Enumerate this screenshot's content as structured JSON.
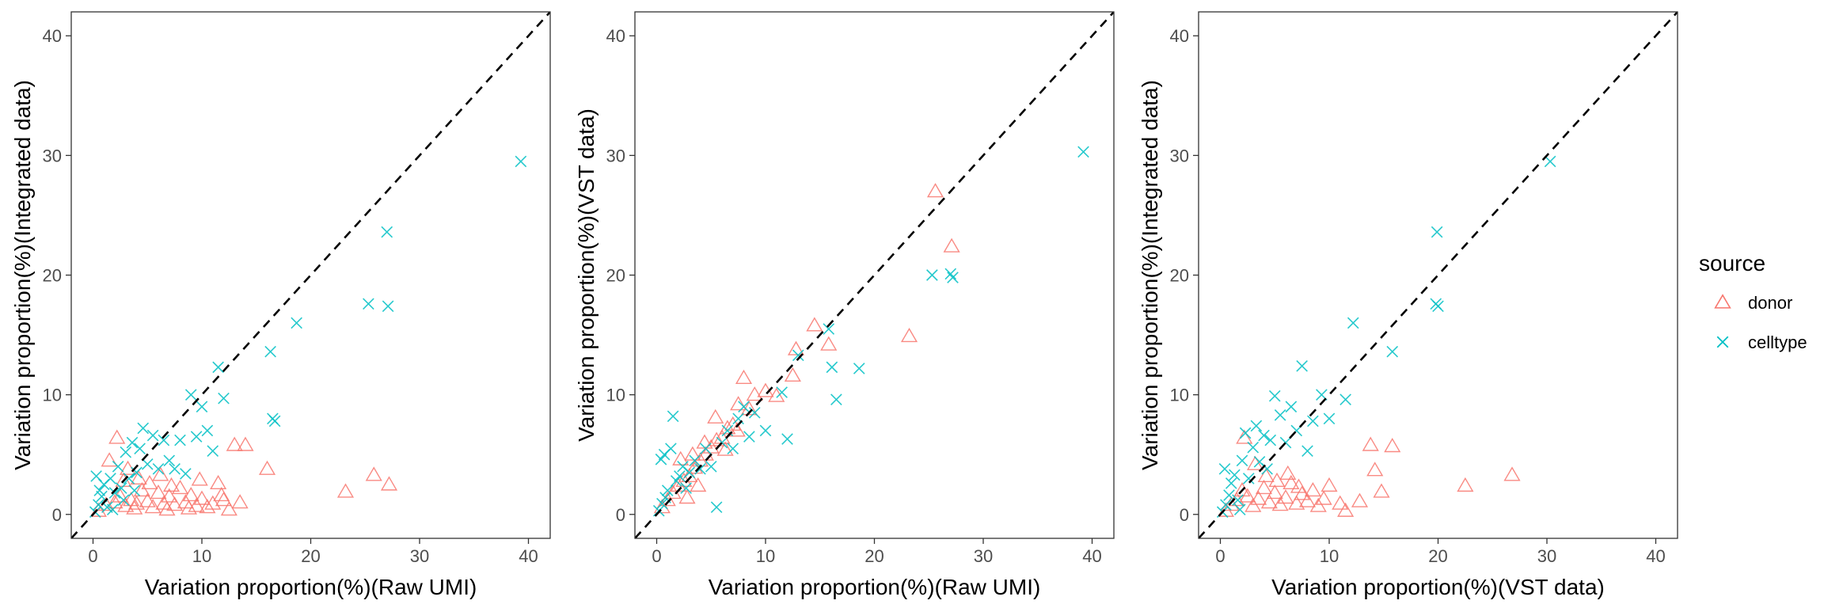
{
  "chart_data": [
    {
      "type": "scatter",
      "xlabel": "Variation proportion(%)(Raw UMI)",
      "ylabel": "Variation proportion(%)(Integrated data)",
      "xlim": [
        -2,
        42
      ],
      "ylim": [
        -2,
        42
      ],
      "xticks": [
        0,
        10,
        20,
        30,
        40
      ],
      "yticks": [
        0,
        10,
        20,
        30,
        40
      ],
      "reference_line": "y = x (dashed)",
      "series": [
        {
          "name": "donor",
          "points": [
            [
              0.5,
              0.3
            ],
            [
              1.2,
              0.8
            ],
            [
              2.0,
              1.0
            ],
            [
              2.5,
              1.5
            ],
            [
              3.0,
              0.7
            ],
            [
              3.5,
              1.2
            ],
            [
              4.0,
              0.9
            ],
            [
              4.5,
              2.0
            ],
            [
              5.0,
              1.1
            ],
            [
              5.5,
              0.6
            ],
            [
              6.0,
              1.8
            ],
            [
              6.5,
              0.9
            ],
            [
              7.0,
              1.5
            ],
            [
              7.5,
              0.8
            ],
            [
              8.0,
              2.2
            ],
            [
              8.5,
              1.0
            ],
            [
              9.0,
              1.6
            ],
            [
              9.5,
              0.7
            ],
            [
              10.0,
              1.3
            ],
            [
              11.0,
              0.9
            ],
            [
              11.5,
              2.6
            ],
            [
              12.0,
              1.2
            ],
            [
              13.0,
              5.8
            ],
            [
              13.5,
              1.0
            ],
            [
              14.0,
              5.8
            ],
            [
              16.0,
              3.8
            ],
            [
              23.2,
              1.9
            ],
            [
              25.8,
              3.3
            ],
            [
              27.2,
              2.5
            ],
            [
              1.5,
              4.5
            ],
            [
              2.2,
              6.4
            ],
            [
              3.2,
              3.8
            ],
            [
              4.2,
              3.0
            ],
            [
              5.2,
              2.6
            ],
            [
              6.2,
              3.3
            ],
            [
              7.2,
              2.4
            ],
            [
              2.8,
              2.8
            ],
            [
              3.8,
              0.5
            ],
            [
              6.8,
              0.4
            ],
            [
              8.8,
              0.5
            ],
            [
              10.5,
              0.6
            ],
            [
              12.5,
              0.4
            ],
            [
              11.8,
              1.6
            ],
            [
              9.8,
              2.9
            ]
          ]
        },
        {
          "name": "celltype",
          "points": [
            [
              0.2,
              0.2
            ],
            [
              0.5,
              0.8
            ],
            [
              0.8,
              1.5
            ],
            [
              1.0,
              2.5
            ],
            [
              1.3,
              0.6
            ],
            [
              1.6,
              3.0
            ],
            [
              2.0,
              1.8
            ],
            [
              2.3,
              4.0
            ],
            [
              2.6,
              2.2
            ],
            [
              3.0,
              5.2
            ],
            [
              3.3,
              3.0
            ],
            [
              3.6,
              6.0
            ],
            [
              4.0,
              3.5
            ],
            [
              4.3,
              5.5
            ],
            [
              4.6,
              7.2
            ],
            [
              5.0,
              4.2
            ],
            [
              5.5,
              6.6
            ],
            [
              6.0,
              3.8
            ],
            [
              6.5,
              6.2
            ],
            [
              7.0,
              4.5
            ],
            [
              7.5,
              3.8
            ],
            [
              8.0,
              6.2
            ],
            [
              8.5,
              3.4
            ],
            [
              9.0,
              10.0
            ],
            [
              9.5,
              6.5
            ],
            [
              10.0,
              9.0
            ],
            [
              10.5,
              7.0
            ],
            [
              11.0,
              5.3
            ],
            [
              11.5,
              12.3
            ],
            [
              12.0,
              9.7
            ],
            [
              16.3,
              13.6
            ],
            [
              16.5,
              8.0
            ],
            [
              16.7,
              7.8
            ],
            [
              18.7,
              16.0
            ],
            [
              25.3,
              17.6
            ],
            [
              27.0,
              23.6
            ],
            [
              27.1,
              17.4
            ],
            [
              39.3,
              29.5
            ],
            [
              1.8,
              0.4
            ],
            [
              2.8,
              1.2
            ],
            [
              3.8,
              2.0
            ],
            [
              0.3,
              3.2
            ],
            [
              0.6,
              2.0
            ]
          ]
        }
      ]
    },
    {
      "type": "scatter",
      "xlabel": "Variation proportion(%)(Raw UMI)",
      "ylabel": "Variation proportion(%)(VST data)",
      "xlim": [
        -2,
        42
      ],
      "ylim": [
        -2,
        42
      ],
      "xticks": [
        0,
        10,
        20,
        30,
        40
      ],
      "yticks": [
        0,
        10,
        20,
        30,
        40
      ],
      "reference_line": "y = x (dashed)",
      "series": [
        {
          "name": "donor",
          "points": [
            [
              0.5,
              0.6
            ],
            [
              1.0,
              1.2
            ],
            [
              1.5,
              1.8
            ],
            [
              2.0,
              2.4
            ],
            [
              2.5,
              2.8
            ],
            [
              3.0,
              3.2
            ],
            [
              3.5,
              3.9
            ],
            [
              4.0,
              4.5
            ],
            [
              4.5,
              5.0
            ],
            [
              5.0,
              5.6
            ],
            [
              5.5,
              6.2
            ],
            [
              6.0,
              6.4
            ],
            [
              6.5,
              7.2
            ],
            [
              7.0,
              7.5
            ],
            [
              7.5,
              9.2
            ],
            [
              8.0,
              11.4
            ],
            [
              8.5,
              8.8
            ],
            [
              9.0,
              10.0
            ],
            [
              10.0,
              10.3
            ],
            [
              11.0,
              9.9
            ],
            [
              12.5,
              11.6
            ],
            [
              12.8,
              13.8
            ],
            [
              14.5,
              15.8
            ],
            [
              15.8,
              14.2
            ],
            [
              23.2,
              14.9
            ],
            [
              25.6,
              27.0
            ],
            [
              27.1,
              22.4
            ],
            [
              2.2,
              4.6
            ],
            [
              3.3,
              5.0
            ],
            [
              4.4,
              6.0
            ],
            [
              5.4,
              8.1
            ],
            [
              6.3,
              5.4
            ],
            [
              7.4,
              7.0
            ],
            [
              3.8,
              2.4
            ],
            [
              2.8,
              1.4
            ]
          ]
        },
        {
          "name": "celltype",
          "points": [
            [
              0.2,
              0.3
            ],
            [
              0.5,
              0.9
            ],
            [
              0.8,
              1.4
            ],
            [
              1.0,
              2.0
            ],
            [
              1.3,
              5.5
            ],
            [
              1.5,
              8.2
            ],
            [
              1.8,
              2.8
            ],
            [
              2.1,
              3.2
            ],
            [
              2.4,
              4.0
            ],
            [
              2.7,
              2.2
            ],
            [
              3.0,
              3.5
            ],
            [
              3.5,
              4.5
            ],
            [
              4.0,
              3.8
            ],
            [
              4.5,
              5.5
            ],
            [
              5.0,
              4.0
            ],
            [
              5.5,
              0.6
            ],
            [
              6.0,
              6.0
            ],
            [
              6.5,
              7.0
            ],
            [
              7.0,
              5.5
            ],
            [
              7.5,
              8.0
            ],
            [
              8.0,
              9.0
            ],
            [
              8.5,
              6.5
            ],
            [
              9.0,
              8.5
            ],
            [
              10.0,
              7.0
            ],
            [
              11.5,
              10.2
            ],
            [
              12.0,
              6.3
            ],
            [
              13.0,
              13.3
            ],
            [
              15.8,
              15.5
            ],
            [
              16.1,
              12.3
            ],
            [
              16.5,
              9.6
            ],
            [
              18.6,
              12.2
            ],
            [
              25.3,
              20.0
            ],
            [
              27.0,
              20.1
            ],
            [
              27.2,
              19.8
            ],
            [
              39.2,
              30.3
            ],
            [
              0.4,
              4.6
            ],
            [
              0.7,
              5.0
            ]
          ]
        }
      ]
    },
    {
      "type": "scatter",
      "xlabel": "Variation proportion(%)(VST data)",
      "ylabel": "Variation proportion(%)(Integrated data)",
      "xlim": [
        -2,
        42
      ],
      "ylim": [
        -2,
        42
      ],
      "xticks": [
        0,
        10,
        20,
        30,
        40
      ],
      "yticks": [
        0,
        10,
        20,
        30,
        40
      ],
      "reference_line": "y = x (dashed)",
      "series": [
        {
          "name": "donor",
          "points": [
            [
              0.5,
              0.3
            ],
            [
              1.0,
              0.8
            ],
            [
              1.5,
              1.2
            ],
            [
              2.0,
              2.0
            ],
            [
              2.5,
              1.5
            ],
            [
              3.0,
              0.7
            ],
            [
              3.5,
              1.3
            ],
            [
              4.0,
              2.2
            ],
            [
              4.5,
              1.0
            ],
            [
              5.0,
              1.8
            ],
            [
              5.5,
              0.8
            ],
            [
              6.0,
              1.4
            ],
            [
              6.5,
              2.6
            ],
            [
              7.0,
              0.9
            ],
            [
              7.5,
              1.7
            ],
            [
              8.0,
              1.1
            ],
            [
              8.5,
              2.0
            ],
            [
              9.0,
              0.7
            ],
            [
              9.5,
              1.3
            ],
            [
              10.0,
              2.4
            ],
            [
              11.0,
              0.9
            ],
            [
              11.5,
              0.3
            ],
            [
              12.8,
              1.1
            ],
            [
              13.8,
              5.8
            ],
            [
              14.2,
              3.7
            ],
            [
              14.8,
              1.9
            ],
            [
              15.8,
              5.7
            ],
            [
              22.5,
              2.4
            ],
            [
              26.8,
              3.3
            ],
            [
              2.2,
              6.4
            ],
            [
              3.2,
              4.2
            ],
            [
              4.2,
              3.2
            ],
            [
              5.2,
              2.8
            ],
            [
              6.2,
              3.4
            ],
            [
              7.2,
              2.3
            ]
          ]
        },
        {
          "name": "celltype",
          "points": [
            [
              0.2,
              0.2
            ],
            [
              0.5,
              0.8
            ],
            [
              0.8,
              1.6
            ],
            [
              1.0,
              2.6
            ],
            [
              1.3,
              3.3
            ],
            [
              1.6,
              1.2
            ],
            [
              2.0,
              4.5
            ],
            [
              2.3,
              6.8
            ],
            [
              2.6,
              3.0
            ],
            [
              3.0,
              5.6
            ],
            [
              3.3,
              7.4
            ],
            [
              3.6,
              4.4
            ],
            [
              4.0,
              6.6
            ],
            [
              4.3,
              3.8
            ],
            [
              4.6,
              6.2
            ],
            [
              5.0,
              9.9
            ],
            [
              5.5,
              8.3
            ],
            [
              6.0,
              6.0
            ],
            [
              6.5,
              9.0
            ],
            [
              7.0,
              7.0
            ],
            [
              7.5,
              12.4
            ],
            [
              8.0,
              5.3
            ],
            [
              8.5,
              7.8
            ],
            [
              9.3,
              10.0
            ],
            [
              10.0,
              8.0
            ],
            [
              11.5,
              9.6
            ],
            [
              12.2,
              16.0
            ],
            [
              15.8,
              13.6
            ],
            [
              19.8,
              17.6
            ],
            [
              19.9,
              23.6
            ],
            [
              20.0,
              17.4
            ],
            [
              30.3,
              29.5
            ],
            [
              1.8,
              0.4
            ],
            [
              0.4,
              3.8
            ]
          ]
        }
      ]
    }
  ],
  "legend": {
    "title": "source",
    "items": [
      {
        "label": "donor",
        "color": "#F8766D",
        "shape": "open-triangle"
      },
      {
        "label": "celltype",
        "color": "#00BFC4",
        "shape": "cross"
      }
    ]
  },
  "colors": {
    "donor": "#F8766D",
    "celltype": "#00BFC4",
    "reference_line": "#000000",
    "panel_border": "#333333"
  }
}
